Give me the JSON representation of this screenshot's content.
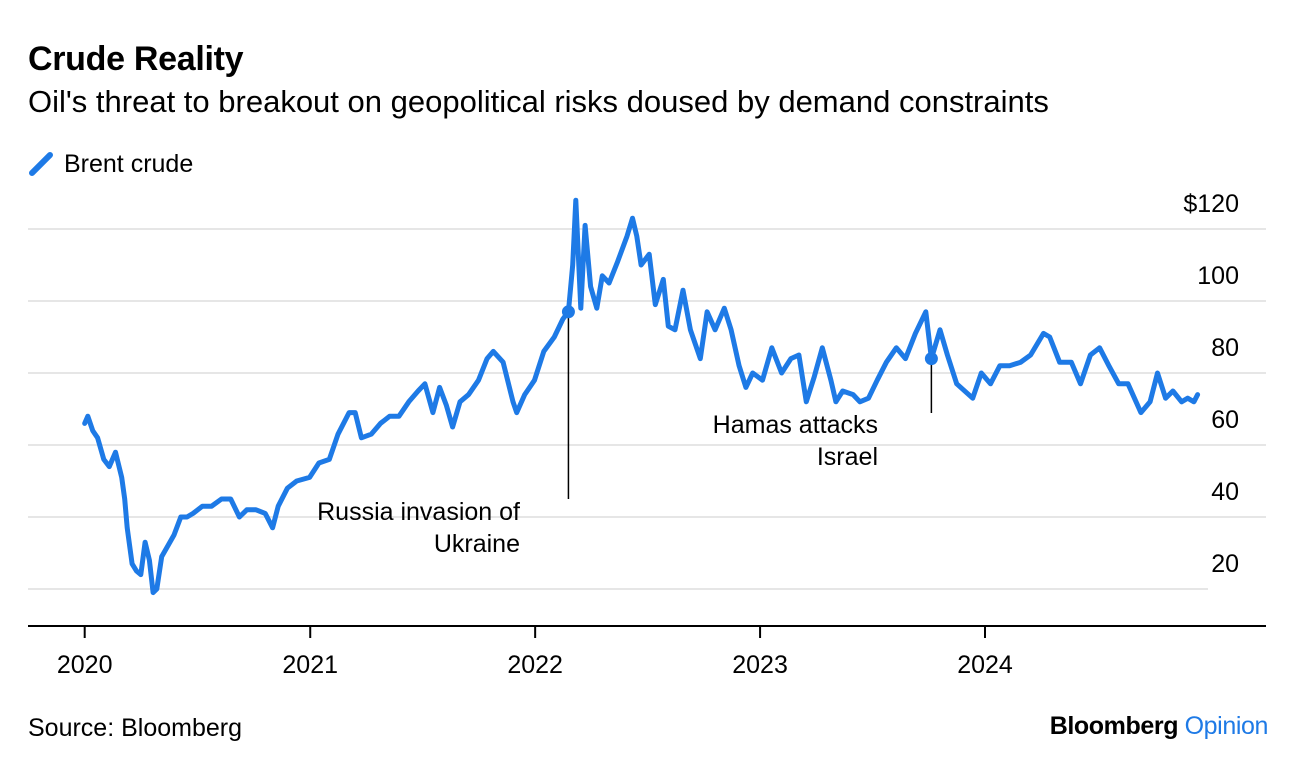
{
  "chart_data": {
    "type": "line",
    "title": "Crude Reality",
    "subtitle": "Oil's threat to breakout on geopolitical risks doused by demand constraints",
    "xlabel": "",
    "ylabel": "",
    "series": [
      {
        "name": "Brent crude",
        "color": "#1e7ae6",
        "points": [
          [
            "2020-01-01",
            66
          ],
          [
            "2020-01-06",
            68
          ],
          [
            "2020-01-14",
            64
          ],
          [
            "2020-01-22",
            62
          ],
          [
            "2020-02-01",
            56
          ],
          [
            "2020-02-10",
            54
          ],
          [
            "2020-02-20",
            58
          ],
          [
            "2020-03-01",
            51
          ],
          [
            "2020-03-06",
            45
          ],
          [
            "2020-03-10",
            37
          ],
          [
            "2020-03-18",
            27
          ],
          [
            "2020-03-25",
            25
          ],
          [
            "2020-04-01",
            24
          ],
          [
            "2020-04-08",
            33
          ],
          [
            "2020-04-15",
            28
          ],
          [
            "2020-04-21",
            19
          ],
          [
            "2020-04-27",
            20
          ],
          [
            "2020-05-05",
            29
          ],
          [
            "2020-05-15",
            32
          ],
          [
            "2020-05-25",
            35
          ],
          [
            "2020-06-05",
            40
          ],
          [
            "2020-06-15",
            40
          ],
          [
            "2020-06-25",
            41
          ],
          [
            "2020-07-10",
            43
          ],
          [
            "2020-07-25",
            43
          ],
          [
            "2020-08-10",
            45
          ],
          [
            "2020-08-25",
            45
          ],
          [
            "2020-09-08",
            40
          ],
          [
            "2020-09-20",
            42
          ],
          [
            "2020-10-05",
            42
          ],
          [
            "2020-10-20",
            41
          ],
          [
            "2020-11-01",
            37
          ],
          [
            "2020-11-10",
            43
          ],
          [
            "2020-11-25",
            48
          ],
          [
            "2020-12-10",
            50
          ],
          [
            "2020-12-31",
            51
          ],
          [
            "2021-01-15",
            55
          ],
          [
            "2021-02-01",
            56
          ],
          [
            "2021-02-15",
            63
          ],
          [
            "2021-03-05",
            69
          ],
          [
            "2021-03-15",
            69
          ],
          [
            "2021-03-25",
            62
          ],
          [
            "2021-04-10",
            63
          ],
          [
            "2021-04-25",
            66
          ],
          [
            "2021-05-10",
            68
          ],
          [
            "2021-05-25",
            68
          ],
          [
            "2021-06-10",
            72
          ],
          [
            "2021-06-25",
            75
          ],
          [
            "2021-07-06",
            77
          ],
          [
            "2021-07-19",
            69
          ],
          [
            "2021-07-30",
            76
          ],
          [
            "2021-08-10",
            71
          ],
          [
            "2021-08-20",
            65
          ],
          [
            "2021-09-01",
            72
          ],
          [
            "2021-09-15",
            74
          ],
          [
            "2021-10-01",
            78
          ],
          [
            "2021-10-15",
            84
          ],
          [
            "2021-10-25",
            86
          ],
          [
            "2021-11-10",
            83
          ],
          [
            "2021-11-26",
            72
          ],
          [
            "2021-12-02",
            69
          ],
          [
            "2021-12-15",
            74
          ],
          [
            "2021-12-31",
            78
          ],
          [
            "2022-01-15",
            86
          ],
          [
            "2022-02-01",
            90
          ],
          [
            "2022-02-15",
            95
          ],
          [
            "2022-02-24",
            97
          ],
          [
            "2022-03-03",
            110
          ],
          [
            "2022-03-08",
            128
          ],
          [
            "2022-03-16",
            98
          ],
          [
            "2022-03-23",
            121
          ],
          [
            "2022-04-01",
            104
          ],
          [
            "2022-04-11",
            98
          ],
          [
            "2022-04-20",
            107
          ],
          [
            "2022-05-01",
            105
          ],
          [
            "2022-05-15",
            111
          ],
          [
            "2022-05-30",
            118
          ],
          [
            "2022-06-08",
            123
          ],
          [
            "2022-06-15",
            118
          ],
          [
            "2022-06-22",
            110
          ],
          [
            "2022-07-05",
            113
          ],
          [
            "2022-07-15",
            99
          ],
          [
            "2022-07-28",
            106
          ],
          [
            "2022-08-05",
            93
          ],
          [
            "2022-08-16",
            92
          ],
          [
            "2022-08-29",
            103
          ],
          [
            "2022-09-10",
            92
          ],
          [
            "2022-09-26",
            84
          ],
          [
            "2022-10-07",
            97
          ],
          [
            "2022-10-20",
            92
          ],
          [
            "2022-11-04",
            98
          ],
          [
            "2022-11-15",
            92
          ],
          [
            "2022-11-28",
            82
          ],
          [
            "2022-12-09",
            76
          ],
          [
            "2022-12-20",
            80
          ],
          [
            "2023-01-05",
            78
          ],
          [
            "2023-01-20",
            87
          ],
          [
            "2023-02-05",
            80
          ],
          [
            "2023-02-20",
            84
          ],
          [
            "2023-03-05",
            85
          ],
          [
            "2023-03-17",
            72
          ],
          [
            "2023-03-30",
            79
          ],
          [
            "2023-04-12",
            87
          ],
          [
            "2023-04-26",
            78
          ],
          [
            "2023-05-04",
            72
          ],
          [
            "2023-05-15",
            75
          ],
          [
            "2023-06-01",
            74
          ],
          [
            "2023-06-12",
            72
          ],
          [
            "2023-06-26",
            73
          ],
          [
            "2023-07-10",
            78
          ],
          [
            "2023-07-25",
            83
          ],
          [
            "2023-08-10",
            87
          ],
          [
            "2023-08-25",
            84
          ],
          [
            "2023-09-10",
            91
          ],
          [
            "2023-09-27",
            97
          ],
          [
            "2023-10-06",
            84
          ],
          [
            "2023-10-20",
            92
          ],
          [
            "2023-11-01",
            85
          ],
          [
            "2023-11-16",
            77
          ],
          [
            "2023-12-12",
            73
          ],
          [
            "2023-12-26",
            80
          ],
          [
            "2024-01-10",
            77
          ],
          [
            "2024-01-25",
            82
          ],
          [
            "2024-02-10",
            82
          ],
          [
            "2024-02-28",
            83
          ],
          [
            "2024-03-15",
            85
          ],
          [
            "2024-04-05",
            91
          ],
          [
            "2024-04-15",
            90
          ],
          [
            "2024-05-01",
            83
          ],
          [
            "2024-05-20",
            83
          ],
          [
            "2024-06-04",
            77
          ],
          [
            "2024-06-20",
            85
          ],
          [
            "2024-07-05",
            87
          ],
          [
            "2024-07-20",
            82
          ],
          [
            "2024-08-05",
            77
          ],
          [
            "2024-08-20",
            77
          ],
          [
            "2024-09-10",
            69
          ],
          [
            "2024-09-25",
            72
          ],
          [
            "2024-10-07",
            80
          ],
          [
            "2024-10-20",
            73
          ],
          [
            "2024-11-01",
            75
          ],
          [
            "2024-11-15",
            72
          ],
          [
            "2024-11-25",
            73
          ],
          [
            "2024-12-05",
            72
          ],
          [
            "2024-12-11",
            74
          ]
        ]
      }
    ],
    "x_tick_labels": [
      "2020",
      "2021",
      "2022",
      "2023",
      "2024"
    ],
    "x_ticks": [
      "2020-01-01",
      "2021-01-01",
      "2022-01-01",
      "2023-01-01",
      "2024-01-01"
    ],
    "xlim": [
      "2019-10-01",
      "2025-04-01"
    ],
    "y_tick_labels": [
      "20",
      "40",
      "60",
      "80",
      "100",
      "$120"
    ],
    "y_ticks": [
      20,
      40,
      60,
      80,
      100,
      120
    ],
    "ylim": [
      10,
      130
    ],
    "y_axis_side": "right",
    "grid": "horizontal",
    "legend": "top-left",
    "annotations": [
      {
        "date": "2022-02-24",
        "value": 97,
        "label_lines": [
          "Russia invasion of",
          "Ukraine"
        ]
      },
      {
        "date": "2023-10-06",
        "value": 84,
        "label_lines": [
          "Hamas attacks",
          "Israel"
        ]
      }
    ]
  },
  "footer": {
    "source": "Source: Bloomberg",
    "brand_name": "Bloomberg",
    "brand_opinion": "Opinion"
  }
}
